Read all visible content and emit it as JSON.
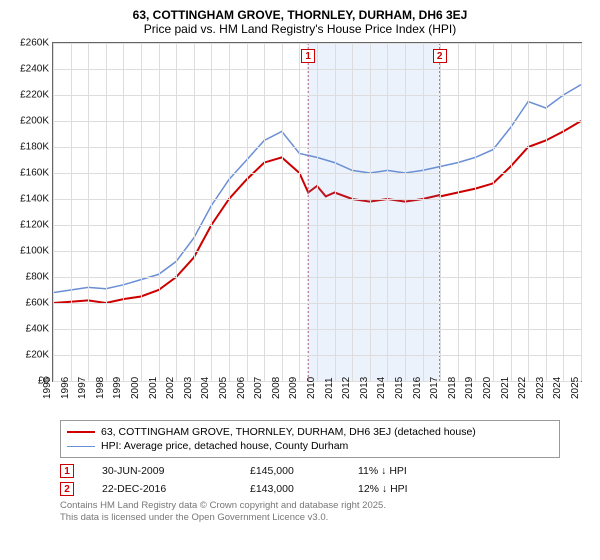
{
  "title_line1": "63, COTTINGHAM GROVE, THORNLEY, DURHAM, DH6 3EJ",
  "title_line2": "Price paid vs. HM Land Registry's House Price Index (HPI)",
  "chart": {
    "type": "line",
    "background_color": "#ffffff",
    "grid_color": "#dddddd",
    "axis_color": "#666666",
    "label_fontsize": 10,
    "x": {
      "min": 1995,
      "max": 2025,
      "ticks": [
        1995,
        1996,
        1997,
        1998,
        1999,
        2000,
        2001,
        2002,
        2003,
        2004,
        2005,
        2006,
        2007,
        2008,
        2009,
        2010,
        2011,
        2012,
        2013,
        2014,
        2015,
        2016,
        2017,
        2018,
        2019,
        2020,
        2021,
        2022,
        2023,
        2024,
        2025
      ]
    },
    "y": {
      "min": 0,
      "max": 260000,
      "tick_step": 20000,
      "tick_labels": [
        "£0",
        "£20K",
        "£40K",
        "£60K",
        "£80K",
        "£100K",
        "£120K",
        "£140K",
        "£160K",
        "£180K",
        "£200K",
        "£220K",
        "£240K",
        "£260K"
      ]
    },
    "shaded_band": {
      "from": 2009.5,
      "to": 2016.97,
      "color": "rgba(100,150,220,0.12)"
    },
    "markers": [
      {
        "id": "1",
        "x": 2009.5,
        "y_top": 6
      },
      {
        "id": "2",
        "x": 2016.97,
        "y_top": 6
      }
    ],
    "series": [
      {
        "name": "price_paid",
        "color": "#cc0000",
        "width": 2,
        "points": [
          [
            1995,
            60000
          ],
          [
            1996,
            61000
          ],
          [
            1997,
            62000
          ],
          [
            1998,
            60000
          ],
          [
            1999,
            63000
          ],
          [
            2000,
            65000
          ],
          [
            2001,
            70000
          ],
          [
            2002,
            80000
          ],
          [
            2003,
            95000
          ],
          [
            2004,
            120000
          ],
          [
            2005,
            140000
          ],
          [
            2006,
            155000
          ],
          [
            2007,
            168000
          ],
          [
            2008,
            172000
          ],
          [
            2009,
            160000
          ],
          [
            2009.5,
            145000
          ],
          [
            2010,
            150000
          ],
          [
            2010.5,
            142000
          ],
          [
            2011,
            145000
          ],
          [
            2012,
            140000
          ],
          [
            2013,
            138000
          ],
          [
            2014,
            140000
          ],
          [
            2015,
            138000
          ],
          [
            2016,
            140000
          ],
          [
            2016.97,
            143000
          ],
          [
            2017,
            142000
          ],
          [
            2018,
            145000
          ],
          [
            2019,
            148000
          ],
          [
            2020,
            152000
          ],
          [
            2021,
            165000
          ],
          [
            2022,
            180000
          ],
          [
            2023,
            185000
          ],
          [
            2024,
            192000
          ],
          [
            2025,
            200000
          ]
        ]
      },
      {
        "name": "hpi",
        "color": "#6a8fd4",
        "width": 1.5,
        "points": [
          [
            1995,
            68000
          ],
          [
            1996,
            70000
          ],
          [
            1997,
            72000
          ],
          [
            1998,
            71000
          ],
          [
            1999,
            74000
          ],
          [
            2000,
            78000
          ],
          [
            2001,
            82000
          ],
          [
            2002,
            92000
          ],
          [
            2003,
            110000
          ],
          [
            2004,
            135000
          ],
          [
            2005,
            155000
          ],
          [
            2006,
            170000
          ],
          [
            2007,
            185000
          ],
          [
            2008,
            192000
          ],
          [
            2009,
            175000
          ],
          [
            2010,
            172000
          ],
          [
            2011,
            168000
          ],
          [
            2012,
            162000
          ],
          [
            2013,
            160000
          ],
          [
            2014,
            162000
          ],
          [
            2015,
            160000
          ],
          [
            2016,
            162000
          ],
          [
            2017,
            165000
          ],
          [
            2018,
            168000
          ],
          [
            2019,
            172000
          ],
          [
            2020,
            178000
          ],
          [
            2021,
            195000
          ],
          [
            2022,
            215000
          ],
          [
            2023,
            210000
          ],
          [
            2024,
            220000
          ],
          [
            2025,
            228000
          ]
        ]
      }
    ]
  },
  "legend": {
    "items": [
      {
        "label": "63, COTTINGHAM GROVE, THORNLEY, DURHAM, DH6 3EJ (detached house)",
        "color": "#cc0000",
        "width": 2
      },
      {
        "label": "HPI: Average price, detached house, County Durham",
        "color": "#6a8fd4",
        "width": 1.5
      }
    ]
  },
  "sales": [
    {
      "marker": "1",
      "date": "30-JUN-2009",
      "price": "£145,000",
      "diff": "11% ↓ HPI"
    },
    {
      "marker": "2",
      "date": "22-DEC-2016",
      "price": "£143,000",
      "diff": "12% ↓ HPI"
    }
  ],
  "footer_line1": "Contains HM Land Registry data © Crown copyright and database right 2025.",
  "footer_line2": "This data is licensed under the Open Government Licence v3.0."
}
